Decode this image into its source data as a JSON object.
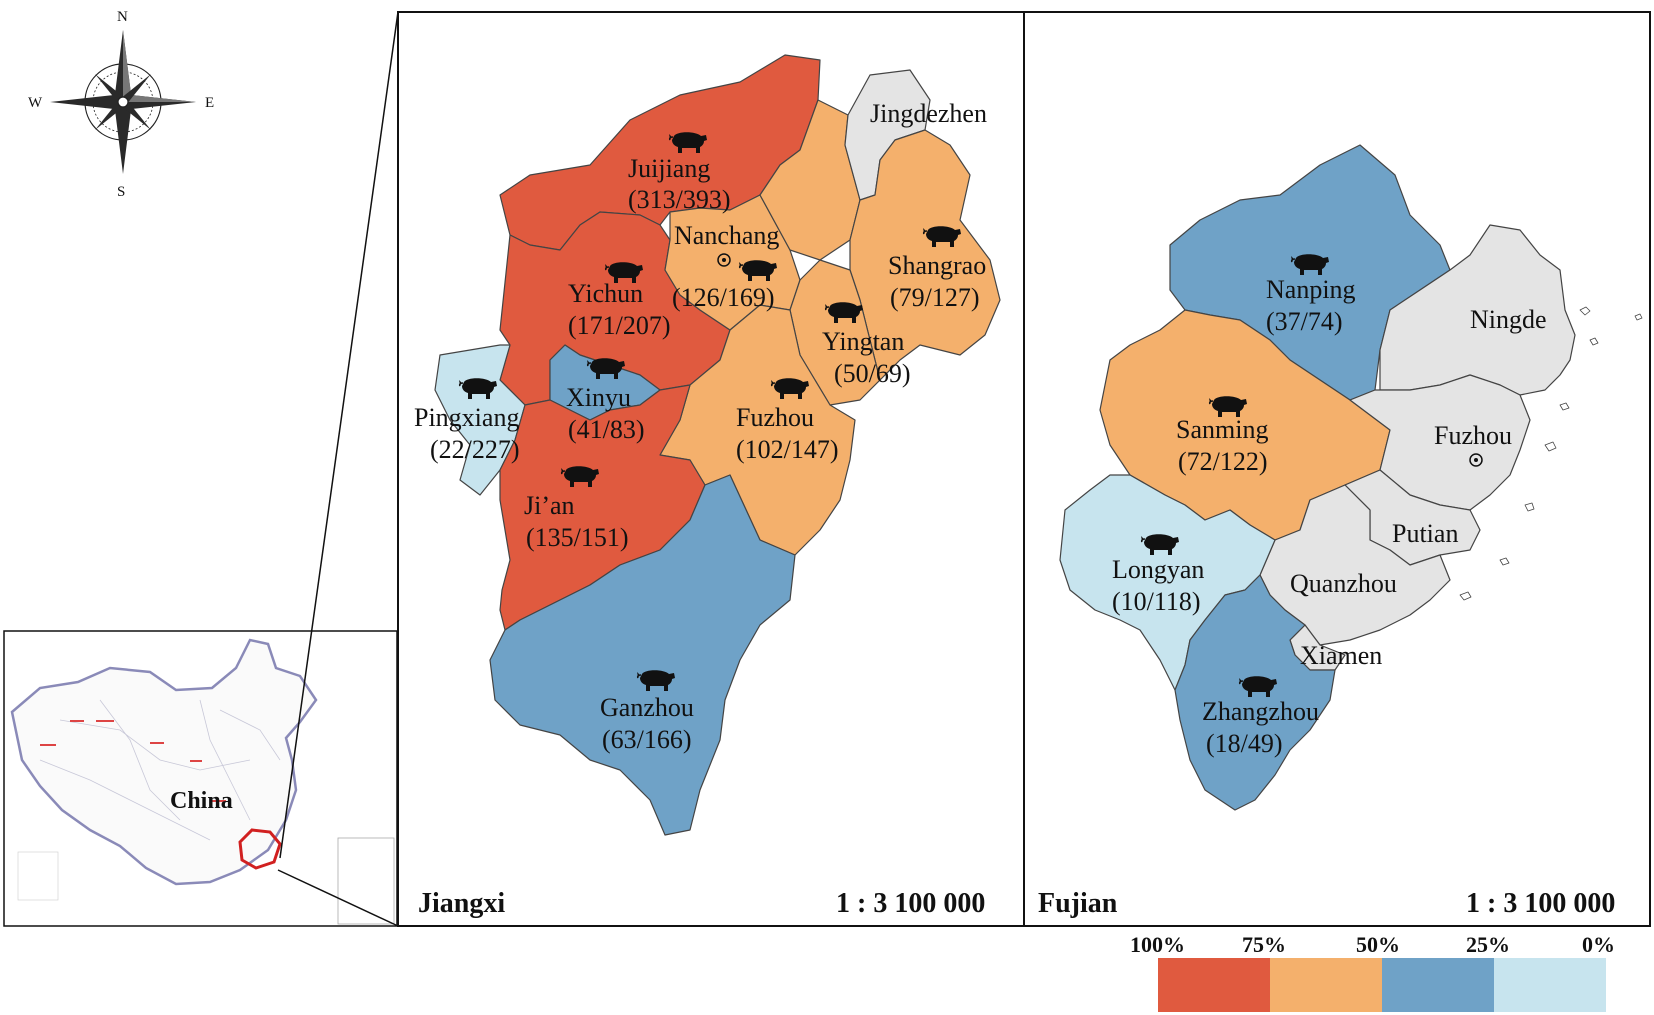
{
  "compass": {
    "n": "N",
    "s": "S",
    "e": "E",
    "w": "W"
  },
  "inset": {
    "label": "China"
  },
  "panels": {
    "jiangxi": {
      "title": "Jiangxi",
      "scale": "1 : 3 100 000"
    },
    "fujian": {
      "title": "Fujian",
      "scale": "1 : 3 100 000"
    }
  },
  "colors": {
    "band_75_100": "#e05a3f",
    "band_50_75": "#f4b06c",
    "band_25_50": "#6fa2c7",
    "band_0_25": "#c7e4ee",
    "none": "#e4e4e4"
  },
  "legend": {
    "ticks": [
      "100%",
      "75%",
      "50%",
      "25%",
      "0%"
    ],
    "colors": [
      "#e05a3f",
      "#f4b06c",
      "#6fa2c7",
      "#c7e4ee"
    ]
  },
  "regions": {
    "jiujiang": {
      "name": "Juijiang",
      "ratio": "(313/393)"
    },
    "yichun": {
      "name": "Yichun",
      "ratio": "(171/207)"
    },
    "nanchang": {
      "name": "Nanchang",
      "ratio": "(126/169)"
    },
    "jingdezhen": {
      "name": "Jingdezhen",
      "ratio": ""
    },
    "shangrao": {
      "name": "Shangrao",
      "ratio": "(79/127)"
    },
    "yingtan": {
      "name": "Yingtan",
      "ratio": "(50/69)"
    },
    "xinyu": {
      "name": "Xinyu",
      "ratio": "(41/83)"
    },
    "pingxiang": {
      "name": "Pingxiang",
      "ratio": "(22/227)"
    },
    "fuzhou_jx": {
      "name": "Fuzhou",
      "ratio": "(102/147)"
    },
    "jian": {
      "name": "Ji’an",
      "ratio": "(135/151)"
    },
    "ganzhou": {
      "name": "Ganzhou",
      "ratio": "(63/166)"
    },
    "nanping": {
      "name": "Nanping",
      "ratio": "(37/74)"
    },
    "ningde": {
      "name": "Ningde",
      "ratio": ""
    },
    "sanming": {
      "name": "Sanming",
      "ratio": "(72/122)"
    },
    "fuzhou_fj": {
      "name": "Fuzhou",
      "ratio": ""
    },
    "putian": {
      "name": "Putian",
      "ratio": ""
    },
    "longyan": {
      "name": "Longyan",
      "ratio": "(10/118)"
    },
    "quanzhou": {
      "name": "Quanzhou",
      "ratio": ""
    },
    "xiamen": {
      "name": "Xiamen",
      "ratio": ""
    },
    "zhangzhou": {
      "name": "Zhangzhou",
      "ratio": "(18/49)"
    }
  }
}
